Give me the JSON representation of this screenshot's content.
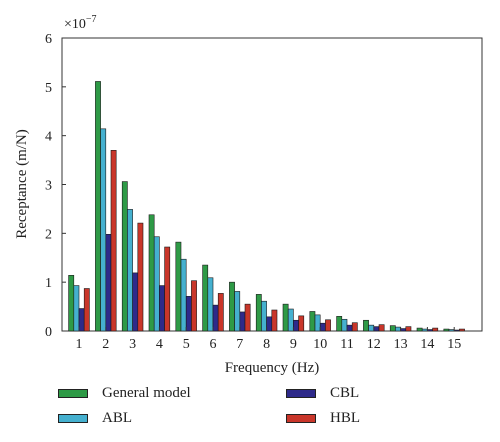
{
  "chart_data": {
    "type": "bar",
    "xlabel": "Frequency (Hz)",
    "ylabel": "Receptance (m/N)",
    "exponent_label": "×10",
    "exponent_power": "−7",
    "ylim": [
      0,
      6
    ],
    "yticks": [
      0,
      1,
      2,
      3,
      4,
      5,
      6
    ],
    "categories": [
      "1",
      "2",
      "3",
      "4",
      "5",
      "6",
      "7",
      "8",
      "9",
      "10",
      "11",
      "12",
      "13",
      "14",
      "15"
    ],
    "series": [
      {
        "name": "General model",
        "color": "#2e9a46",
        "values": [
          1.14,
          5.11,
          3.06,
          2.38,
          1.82,
          1.35,
          1.0,
          0.75,
          0.55,
          0.4,
          0.3,
          0.22,
          0.11,
          0.06,
          0.04
        ]
      },
      {
        "name": "ABL",
        "color": "#45b0cf",
        "values": [
          0.93,
          4.14,
          2.49,
          1.93,
          1.47,
          1.09,
          0.81,
          0.61,
          0.45,
          0.33,
          0.24,
          0.12,
          0.08,
          0.04,
          0.03
        ]
      },
      {
        "name": "CBL",
        "color": "#2e2a8a",
        "values": [
          0.46,
          1.98,
          1.19,
          0.93,
          0.71,
          0.53,
          0.39,
          0.29,
          0.22,
          0.16,
          0.12,
          0.09,
          0.05,
          0.03,
          0.02
        ]
      },
      {
        "name": "HBL",
        "color": "#c9362a",
        "values": [
          0.87,
          3.7,
          2.21,
          1.72,
          1.03,
          0.77,
          0.55,
          0.43,
          0.31,
          0.23,
          0.17,
          0.13,
          0.09,
          0.06,
          0.04
        ]
      }
    ],
    "grid": false,
    "legend_position": "bottom"
  }
}
